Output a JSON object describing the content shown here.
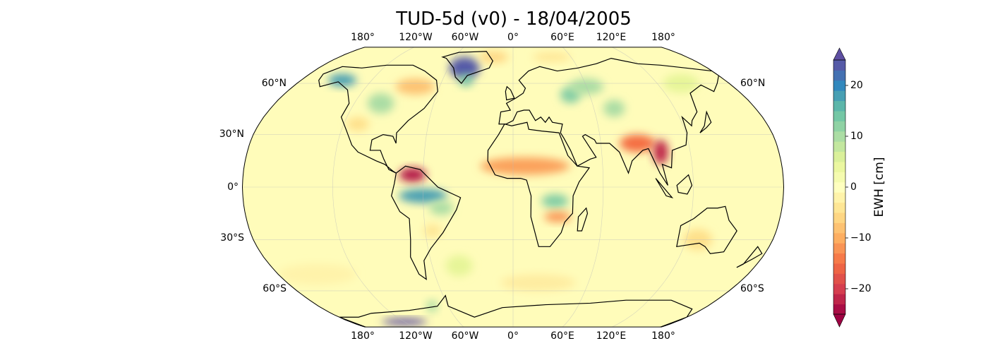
{
  "title": "TUD-5d (v0) - 18/04/2005",
  "lon_labels": [
    "180°",
    "120°W",
    "60°W",
    "0°",
    "60°E",
    "120°E",
    "180°"
  ],
  "lat_labels_left": [
    "60°N",
    "30°N",
    "0°",
    "30°S",
    "60°S"
  ],
  "lat_labels_right": [
    "60°N",
    "60°S"
  ],
  "colorbar": {
    "label": "EWH [cm]",
    "ticks": [
      "20",
      "10",
      "0",
      "−10",
      "−20"
    ],
    "tick_values": [
      20,
      10,
      0,
      -10,
      -20
    ],
    "range": [
      -25,
      25
    ],
    "step": 2,
    "colormap": "Spectral",
    "extend": "both"
  }
}
